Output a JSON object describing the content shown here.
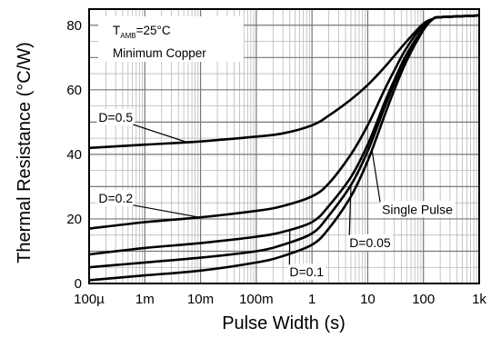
{
  "chart_data": {
    "type": "line",
    "xlabel": "Pulse Width (s)",
    "ylabel": "Thermal Resistance (°C/W)",
    "x_scale": "log",
    "xlim": [
      0.0001,
      1000
    ],
    "ylim": [
      0,
      85
    ],
    "grid": true,
    "x_ticks": [
      {
        "value": 0.0001,
        "label": "100µ"
      },
      {
        "value": 0.001,
        "label": "1m"
      },
      {
        "value": 0.01,
        "label": "10m"
      },
      {
        "value": 0.1,
        "label": "100m"
      },
      {
        "value": 1,
        "label": "1"
      },
      {
        "value": 10,
        "label": "10"
      },
      {
        "value": 100,
        "label": "100"
      },
      {
        "value": 1000,
        "label": "1k"
      }
    ],
    "y_ticks": [
      {
        "value": 0,
        "label": "0"
      },
      {
        "value": 20,
        "label": "20"
      },
      {
        "value": 40,
        "label": "40"
      },
      {
        "value": 60,
        "label": "60"
      },
      {
        "value": 80,
        "label": "80"
      }
    ],
    "annotation": {
      "tamb_prefix": "T",
      "tamb_sub": "AMB",
      "tamb_suffix": "=25°C",
      "line2": "Minimum Copper"
    },
    "series": [
      {
        "name": "D=0.5",
        "x": [
          0.0001,
          0.001,
          0.01,
          0.1,
          0.3,
          1,
          2,
          5,
          10,
          20,
          50,
          100,
          150,
          200,
          1000
        ],
        "y": [
          42,
          43,
          44,
          45.5,
          46.5,
          49,
          52,
          57,
          61.5,
          67,
          75,
          80.5,
          82,
          82.5,
          83
        ]
      },
      {
        "name": "D=0.2",
        "x": [
          0.0001,
          0.001,
          0.01,
          0.1,
          0.3,
          1,
          2,
          5,
          10,
          20,
          30,
          50,
          100,
          150,
          200,
          1000
        ],
        "y": [
          17,
          19,
          20.5,
          22.5,
          24,
          27,
          31,
          40,
          49,
          60,
          66,
          73,
          80,
          82,
          82.5,
          83
        ]
      },
      {
        "name": "D=0.1",
        "x": [
          0.0001,
          0.001,
          0.01,
          0.1,
          0.3,
          1,
          2,
          5,
          10,
          20,
          30,
          50,
          100,
          150,
          200,
          1000
        ],
        "y": [
          9,
          11,
          12.5,
          14.5,
          16,
          19,
          24,
          33,
          43,
          56,
          63,
          71,
          79,
          82,
          82.5,
          83
        ]
      },
      {
        "name": "D=0.05",
        "x": [
          0.0001,
          0.001,
          0.01,
          0.1,
          0.3,
          1,
          2,
          5,
          10,
          20,
          30,
          50,
          100,
          150,
          200,
          1000
        ],
        "y": [
          5,
          6.5,
          8,
          10,
          12,
          15.5,
          21,
          30.5,
          41,
          54.5,
          62,
          70.5,
          79,
          82,
          82.5,
          83
        ]
      },
      {
        "name": "Single Pulse",
        "x": [
          0.0001,
          0.001,
          0.01,
          0.1,
          0.3,
          1,
          2,
          5,
          10,
          20,
          30,
          50,
          100,
          150,
          200,
          1000
        ],
        "y": [
          1,
          2.5,
          4,
          6.5,
          8.5,
          12,
          17,
          27,
          38,
          52,
          60,
          69,
          78.5,
          82,
          82.5,
          83
        ]
      }
    ],
    "curve_labels": [
      {
        "series": "D=0.5",
        "text": "D=0.5",
        "at_x": 0.0056,
        "at_y": 43.8,
        "tx": 0.0003,
        "ty": 51.5,
        "anchor": "middle"
      },
      {
        "series": "D=0.2",
        "text": "D=0.2",
        "at_x": 0.0095,
        "at_y": 20.5,
        "tx": 0.0003,
        "ty": 26.5,
        "anchor": "middle"
      },
      {
        "series": "Single Pulse",
        "text": "Single Pulse",
        "at_x": 12,
        "at_y": 41,
        "tx": 18,
        "ty": 23,
        "anchor": "start"
      },
      {
        "series": "D=0.05",
        "text": "D=0.05",
        "at_x": 5,
        "at_y": 30.5,
        "tx": 11,
        "ty": 12.7,
        "anchor": "middle"
      },
      {
        "series": "D=0.1",
        "text": "D=0.1",
        "at_x": 0.4,
        "at_y": 16.5,
        "tx": 0.8,
        "ty": 3.6,
        "anchor": "middle"
      }
    ]
  }
}
